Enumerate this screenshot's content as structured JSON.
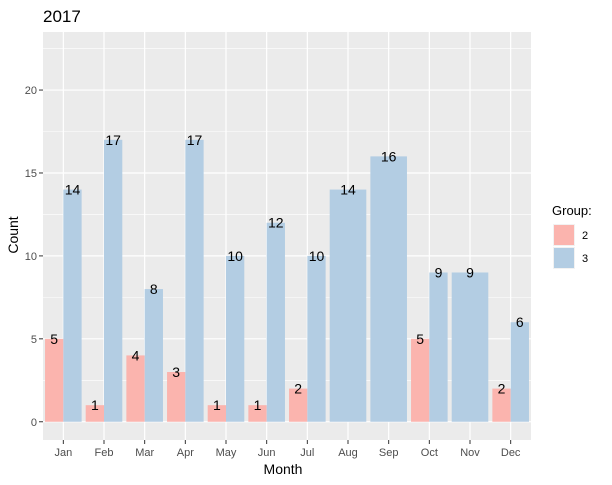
{
  "chart_data": {
    "type": "bar",
    "title": "2017",
    "xlabel": "Month",
    "ylabel": "Count",
    "categories": [
      "Jan",
      "Feb",
      "Mar",
      "Apr",
      "May",
      "Jun",
      "Jul",
      "Aug",
      "Sep",
      "Oct",
      "Nov",
      "Dec"
    ],
    "series": [
      {
        "name": "2",
        "color": "#FBB4AE",
        "values": [
          5,
          1,
          4,
          3,
          1,
          1,
          2,
          null,
          null,
          5,
          null,
          2
        ]
      },
      {
        "name": "3",
        "color": "#B3CDE3",
        "values": [
          14,
          17,
          8,
          17,
          10,
          12,
          10,
          14,
          16,
          9,
          9,
          6
        ]
      }
    ],
    "ylim": [
      -1.1,
      23.5
    ],
    "yticks": [
      0,
      5,
      10,
      15,
      20
    ],
    "grid": true,
    "panel_background": "#EBEBEB",
    "grid_color": "#FFFFFF",
    "legend": {
      "title": "Group:",
      "position": "right"
    }
  }
}
